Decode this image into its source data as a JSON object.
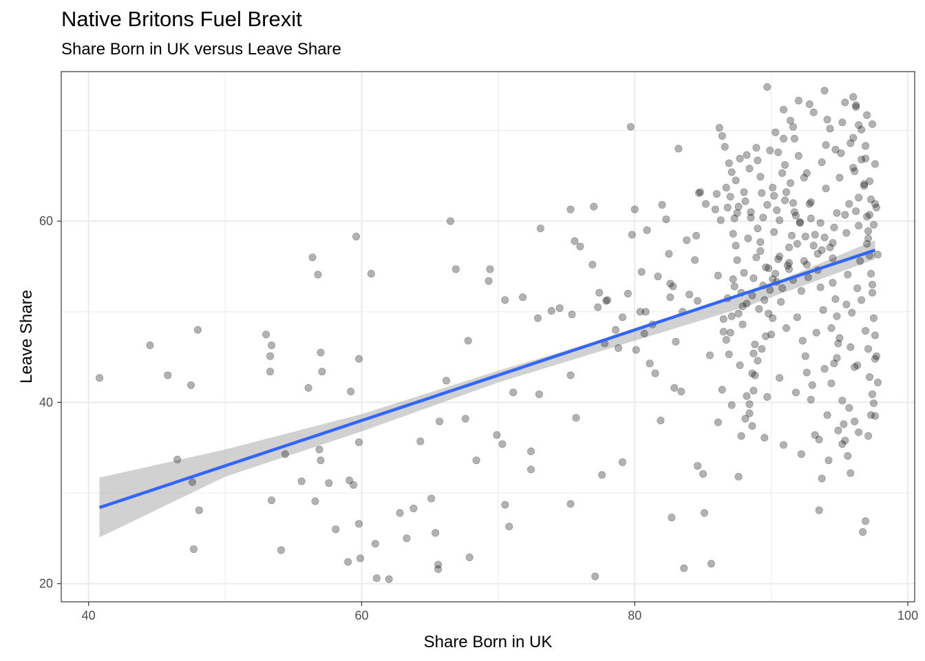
{
  "title": "Native Britons Fuel Brexit",
  "subtitle": "Share Born in UK versus Leave Share",
  "colors": {
    "point": "#000000",
    "trend_line": "#3366FF",
    "confidence_band": "#999999",
    "grid": "#EBEBEB",
    "panel_border": "#333333"
  },
  "chart_data": {
    "type": "scatter",
    "title": "Native Britons Fuel Brexit",
    "subtitle": "Share Born in UK versus Leave Share",
    "xlabel": "Share Born in UK",
    "ylabel": "Leave Share",
    "xlim": [
      38,
      100.5
    ],
    "ylim": [
      18,
      76.5
    ],
    "x_ticks": [
      40,
      60,
      80,
      100
    ],
    "y_ticks": [
      20,
      40,
      60
    ],
    "x_tick_labels": [
      "40",
      "60",
      "80",
      "100"
    ],
    "y_tick_labels": [
      "20",
      "40",
      "60"
    ],
    "grid": true,
    "legend": "none",
    "point_alpha": 0.3,
    "trend": {
      "method": "linear",
      "x_start": 40.8,
      "y_start": 28.4,
      "x_end": 97.6,
      "y_end": 56.8,
      "band": [
        [
          40.8,
          25.1,
          31.7
        ],
        [
          50,
          31.8,
          34.8
        ],
        [
          60,
          36.8,
          38.7
        ],
        [
          70,
          42.2,
          43.5
        ],
        [
          80,
          46.8,
          48.0
        ],
        [
          88,
          50.5,
          51.8
        ],
        [
          97.6,
          55.8,
          57.9
        ]
      ]
    },
    "points": [
      [
        40.8,
        42.7
      ],
      [
        44.5,
        46.3
      ],
      [
        45.8,
        43.0
      ],
      [
        46.5,
        33.7
      ],
      [
        47.5,
        41.9
      ],
      [
        47.6,
        31.2
      ],
      [
        47.7,
        23.8
      ],
      [
        48,
        48
      ],
      [
        48.1,
        28.1
      ],
      [
        53,
        47.5
      ],
      [
        53.3,
        45.1
      ],
      [
        53.3,
        43.4
      ],
      [
        53.4,
        46.3
      ],
      [
        53.4,
        29.2
      ],
      [
        54.1,
        23.7
      ],
      [
        54.4,
        34.3
      ],
      [
        55.6,
        31.3
      ],
      [
        56.1,
        41.6
      ],
      [
        56.4,
        56
      ],
      [
        56.6,
        29.1
      ],
      [
        56.8,
        54.1
      ],
      [
        56.9,
        34.8
      ],
      [
        57,
        33.6
      ],
      [
        57,
        45.5
      ],
      [
        57.1,
        43.4
      ],
      [
        57.6,
        31.1
      ],
      [
        58.1,
        26
      ],
      [
        59,
        22.4
      ],
      [
        59.1,
        31.4
      ],
      [
        59.2,
        41.2
      ],
      [
        59.4,
        30.9
      ],
      [
        59.6,
        58.3
      ],
      [
        59.8,
        35.6
      ],
      [
        59.8,
        44.8
      ],
      [
        59.8,
        26.6
      ],
      [
        59.9,
        22.8
      ],
      [
        60.7,
        54.2
      ],
      [
        61,
        24.4
      ],
      [
        61.1,
        20.6
      ],
      [
        62,
        20.5
      ],
      [
        62.8,
        27.8
      ],
      [
        63.3,
        25
      ],
      [
        63.8,
        28.3
      ],
      [
        64.3,
        35.7
      ],
      [
        65.1,
        29.4
      ],
      [
        65.4,
        25.6
      ],
      [
        65.6,
        21.6
      ],
      [
        65.6,
        22.1
      ],
      [
        65.7,
        37.9
      ],
      [
        66.2,
        42.4
      ],
      [
        66.5,
        60
      ],
      [
        66.9,
        54.7
      ],
      [
        67.6,
        38.2
      ],
      [
        67.8,
        46.8
      ],
      [
        67.9,
        22.9
      ],
      [
        68.4,
        33.6
      ],
      [
        69.3,
        53.4
      ],
      [
        69.4,
        54.7
      ],
      [
        69.9,
        36.4
      ],
      [
        70.3,
        35.4
      ],
      [
        70.5,
        51.3
      ],
      [
        70.5,
        28.7
      ],
      [
        70.8,
        26.3
      ],
      [
        71.1,
        41.1
      ],
      [
        71.8,
        51.6
      ],
      [
        72.4,
        34.6
      ],
      [
        72.4,
        32.6
      ],
      [
        72.9,
        49.3
      ],
      [
        73.0,
        40.9
      ],
      [
        73.1,
        59.2
      ],
      [
        73.9,
        50.1
      ],
      [
        74.5,
        50.4
      ],
      [
        75.3,
        61.3
      ],
      [
        75.3,
        43
      ],
      [
        75.3,
        28.8
      ],
      [
        75.4,
        49.7
      ],
      [
        75.6,
        57.8
      ],
      [
        75.7,
        38.3
      ],
      [
        76,
        57.2
      ],
      [
        76.9,
        55.2
      ],
      [
        77,
        61.6
      ],
      [
        77.1,
        20.8
      ],
      [
        77.3,
        50.5
      ],
      [
        77.4,
        52.1
      ],
      [
        77.6,
        32
      ],
      [
        77.8,
        46.5
      ],
      [
        77.9,
        51.2
      ],
      [
        78.0,
        51.3
      ],
      [
        78.6,
        48
      ],
      [
        78.8,
        46
      ],
      [
        79.1,
        33.4
      ],
      [
        79.1,
        49.4
      ],
      [
        79.5,
        52
      ],
      [
        79.7,
        70.4
      ],
      [
        79.8,
        58.5
      ],
      [
        80,
        61.3
      ],
      [
        80.1,
        45.8
      ],
      [
        80.4,
        50
      ],
      [
        80.5,
        54.4
      ],
      [
        80.7,
        47.6
      ],
      [
        80.8,
        50
      ],
      [
        80.9,
        59
      ],
      [
        81.1,
        44.3
      ],
      [
        81.5,
        43.2
      ],
      [
        81.3,
        48.6
      ],
      [
        81.7,
        53.9
      ],
      [
        81.9,
        38
      ],
      [
        82,
        61.8
      ],
      [
        82.3,
        60.2
      ],
      [
        82.5,
        56.4
      ],
      [
        82.6,
        51.6
      ],
      [
        82.6,
        53.1
      ],
      [
        82.7,
        27.3
      ],
      [
        82.8,
        52.8
      ],
      [
        82.9,
        41.6
      ],
      [
        83.0,
        46.7
      ],
      [
        83.2,
        68
      ],
      [
        83.4,
        41.2
      ],
      [
        83.5,
        50
      ],
      [
        83.6,
        21.7
      ],
      [
        83.8,
        57.9
      ],
      [
        84,
        51.9
      ],
      [
        84.4,
        55.7
      ],
      [
        84.5,
        58.4
      ],
      [
        84.6,
        33
      ],
      [
        84.6,
        51.2
      ],
      [
        84.7,
        63.1
      ],
      [
        84.8,
        63.2
      ],
      [
        85,
        32.1
      ],
      [
        85.1,
        27.8
      ],
      [
        85.2,
        61.9
      ],
      [
        85.5,
        45.2
      ],
      [
        85.6,
        22.2
      ],
      [
        85.9,
        61.3
      ],
      [
        86.0,
        63
      ],
      [
        86.1,
        54
      ],
      [
        86.1,
        37.8
      ],
      [
        86.2,
        70.3
      ],
      [
        86.3,
        60.1
      ],
      [
        86.5,
        47.8
      ],
      [
        86.7,
        46.9
      ],
      [
        86.8,
        61.5
      ],
      [
        87.2,
        53.6
      ],
      [
        87.1,
        65.4
      ],
      [
        87.3,
        60.3
      ],
      [
        87.6,
        31.8
      ],
      [
        88.2,
        40.7
      ],
      [
        88.4,
        38.8
      ],
      [
        88.7,
        45.4
      ],
      [
        88.8,
        43
      ],
      [
        89.2,
        57.7
      ],
      [
        89.2,
        56.7
      ],
      [
        89.5,
        51.3
      ],
      [
        89.8,
        49.8
      ],
      [
        90.1,
        49.3
      ],
      [
        89.7,
        74.8
      ],
      [
        90.1,
        53.6
      ],
      [
        90.5,
        67.6
      ],
      [
        90.8,
        65.3
      ],
      [
        91.0,
        66.2
      ],
      [
        91.1,
        63.2
      ],
      [
        91.3,
        55.4
      ],
      [
        91.6,
        62
      ],
      [
        91.8,
        60.6
      ],
      [
        91.9,
        57.5
      ],
      [
        92.1,
        59.8
      ],
      [
        92.2,
        52.3
      ],
      [
        92.5,
        45.1
      ],
      [
        92.6,
        43.3
      ],
      [
        93.0,
        41.9
      ],
      [
        93.2,
        36.4
      ],
      [
        93.5,
        28.1
      ],
      [
        93.7,
        31.6
      ],
      [
        93.9,
        58.2
      ],
      [
        94.1,
        71.2
      ],
      [
        94.3,
        57.1
      ],
      [
        94.5,
        53.2
      ],
      [
        94.8,
        49.5
      ],
      [
        95.0,
        47.1
      ],
      [
        95.2,
        40.2
      ],
      [
        95.4,
        35.8
      ],
      [
        95.6,
        34.1
      ],
      [
        95.8,
        32.2
      ],
      [
        96.0,
        73.7
      ],
      [
        96.2,
        72.6
      ],
      [
        96.4,
        70.6
      ],
      [
        96.6,
        66.8
      ],
      [
        96.8,
        63.9
      ],
      [
        97.0,
        60.5
      ],
      [
        97.1,
        58.1
      ],
      [
        97.2,
        56.2
      ],
      [
        97.3,
        54.2
      ],
      [
        97.4,
        52.1
      ],
      [
        97.5,
        49.3
      ],
      [
        97.6,
        47.4
      ],
      [
        97.7,
        45.1
      ],
      [
        97.2,
        42.8
      ],
      [
        97.4,
        40.9
      ],
      [
        97.6,
        38.5
      ],
      [
        97.1,
        36.3
      ],
      [
        96.9,
        26.9
      ],
      [
        96.7,
        25.7
      ],
      [
        96.3,
        44.1
      ],
      [
        96.1,
        43.9
      ],
      [
        95.7,
        39.4
      ],
      [
        95.3,
        37.6
      ],
      [
        94.9,
        46.5
      ],
      [
        94.6,
        44.3
      ],
      [
        94.4,
        42.1
      ],
      [
        94.2,
        33.6
      ],
      [
        93.8,
        50.2
      ],
      [
        93.4,
        54.6
      ],
      [
        93.1,
        57.3
      ],
      [
        92.8,
        61.9
      ],
      [
        92.4,
        64.8
      ],
      [
        92.0,
        67.2
      ],
      [
        91.7,
        69.1
      ],
      [
        91.4,
        71.1
      ],
      [
        90.9,
        72.3
      ],
      [
        90.6,
        56.1
      ],
      [
        90.3,
        54.2
      ],
      [
        89.9,
        52.4
      ],
      [
        89.6,
        47.3
      ],
      [
        89.3,
        45.9
      ],
      [
        89.0,
        44.6
      ],
      [
        88.6,
        43.2
      ],
      [
        88.4,
        39.8
      ],
      [
        88.1,
        38.2
      ],
      [
        87.8,
        36.3
      ],
      [
        87.5,
        55.7
      ],
      [
        87.2,
        58.6
      ],
      [
        87.0,
        62.7
      ],
      [
        86.9,
        66.4
      ],
      [
        86.6,
        68.2
      ],
      [
        86.4,
        69.4
      ],
      [
        88.0,
        63.2
      ],
      [
        88.5,
        61.0
      ],
      [
        89.0,
        59.2
      ],
      [
        90.2,
        58.8
      ],
      [
        91.2,
        55.1
      ],
      [
        92.7,
        53.8
      ],
      [
        93.6,
        52.7
      ],
      [
        94.7,
        51.4
      ],
      [
        95.5,
        50.8
      ],
      [
        96.5,
        55.6
      ],
      [
        97.0,
        57.5
      ],
      [
        97.5,
        59.6
      ],
      [
        97.7,
        61.5
      ],
      [
        97.3,
        62.4
      ],
      [
        96.8,
        64.1
      ],
      [
        96.0,
        65.9
      ],
      [
        95.1,
        67.5
      ],
      [
        94.0,
        68.4
      ],
      [
        92.9,
        60.3
      ],
      [
        91.5,
        58.4
      ],
      [
        90.4,
        61.2
      ],
      [
        89.4,
        60.4
      ],
      [
        88.3,
        58.1
      ],
      [
        87.4,
        57.3
      ],
      [
        86.8,
        51.5
      ],
      [
        86.5,
        49.2
      ],
      [
        87.9,
        48.6
      ],
      [
        89.1,
        50.3
      ],
      [
        90.7,
        51.1
      ],
      [
        91.9,
        49.4
      ],
      [
        93.3,
        47.7
      ],
      [
        94.4,
        48.2
      ],
      [
        95.9,
        49.9
      ],
      [
        96.6,
        51.3
      ],
      [
        97.4,
        53.0
      ],
      [
        97.8,
        56.3
      ],
      [
        97.1,
        58.9
      ],
      [
        96.2,
        61.1
      ],
      [
        95.4,
        60.7
      ],
      [
        94.6,
        59.3
      ],
      [
        93.7,
        56.8
      ],
      [
        92.6,
        55.2
      ],
      [
        91.6,
        53.5
      ],
      [
        90.8,
        52.6
      ],
      [
        89.8,
        54.8
      ],
      [
        88.9,
        56.0
      ],
      [
        88.0,
        54.3
      ],
      [
        87.3,
        52.8
      ],
      [
        86.9,
        45.3
      ],
      [
        87.7,
        44.1
      ],
      [
        88.7,
        41.3
      ],
      [
        89.7,
        40.6
      ],
      [
        90.6,
        42.7
      ],
      [
        91.8,
        41.1
      ],
      [
        92.9,
        40.3
      ],
      [
        94.1,
        38.6
      ],
      [
        95.2,
        35.4
      ],
      [
        96.4,
        36.7
      ],
      [
        97.5,
        39.9
      ],
      [
        97.6,
        44.8
      ],
      [
        96.9,
        47.9
      ],
      [
        95.8,
        46.1
      ],
      [
        94.8,
        44.9
      ],
      [
        93.9,
        43.7
      ],
      [
        92.3,
        46.8
      ],
      [
        91.1,
        48.2
      ],
      [
        90.0,
        47.5
      ],
      [
        88.8,
        46.4
      ],
      [
        88.2,
        50.9
      ],
      [
        87.6,
        49.8
      ],
      [
        87.0,
        47.7
      ],
      [
        86.4,
        41.4
      ],
      [
        87.1,
        39.7
      ],
      [
        88.6,
        37.4
      ],
      [
        89.5,
        36.1
      ],
      [
        90.9,
        35.3
      ],
      [
        92.2,
        34.3
      ],
      [
        93.5,
        35.9
      ],
      [
        94.9,
        36.9
      ],
      [
        96.1,
        37.9
      ],
      [
        97.3,
        38.6
      ],
      [
        97.8,
        42.2
      ],
      [
        97.1,
        45.9
      ],
      [
        96.3,
        52.6
      ],
      [
        95.6,
        54.1
      ],
      [
        94.5,
        55.9
      ],
      [
        93.2,
        58.5
      ],
      [
        92.1,
        59.9
      ],
      [
        91.0,
        62.3
      ],
      [
        90.1,
        63.7
      ],
      [
        89.2,
        64.9
      ],
      [
        88.4,
        65.8
      ],
      [
        87.7,
        66.9
      ],
      [
        88.9,
        68.1
      ],
      [
        90.3,
        69.8
      ],
      [
        91.6,
        70.4
      ],
      [
        92.8,
        72.9
      ],
      [
        93.9,
        74.4
      ],
      [
        95.2,
        70.9
      ],
      [
        96.0,
        69.2
      ],
      [
        96.9,
        68.3
      ],
      [
        97.6,
        66.3
      ],
      [
        97.2,
        64.4
      ],
      [
        96.4,
        62.6
      ],
      [
        95.7,
        61.9
      ],
      [
        94.8,
        60.9
      ],
      [
        93.6,
        59.8
      ],
      [
        92.5,
        58.3
      ],
      [
        91.3,
        57.1
      ],
      [
        90.5,
        55.8
      ],
      [
        89.6,
        54.9
      ],
      [
        88.7,
        53.7
      ],
      [
        87.8,
        52.1
      ],
      [
        87.5,
        60.9
      ],
      [
        88.1,
        62.2
      ],
      [
        89.3,
        63.1
      ],
      [
        90.2,
        62.8
      ],
      [
        91.4,
        64.2
      ],
      [
        92.6,
        65.3
      ],
      [
        93.7,
        66.5
      ],
      [
        94.7,
        67.9
      ],
      [
        95.8,
        68.6
      ],
      [
        96.6,
        70.1
      ],
      [
        97.4,
        70.7
      ],
      [
        97.0,
        71.7
      ],
      [
        96.2,
        72.8
      ],
      [
        95.4,
        73.1
      ],
      [
        94.3,
        70.2
      ],
      [
        93.1,
        72.0
      ],
      [
        92.0,
        73.3
      ],
      [
        90.9,
        69.1
      ],
      [
        89.9,
        67.8
      ],
      [
        89.0,
        66.7
      ],
      [
        88.2,
        67.3
      ],
      [
        87.4,
        64.5
      ],
      [
        86.7,
        63.7
      ],
      [
        87.6,
        61.6
      ],
      [
        88.5,
        60.4
      ],
      [
        89.7,
        61.8
      ],
      [
        90.6,
        60.1
      ],
      [
        91.7,
        61.0
      ],
      [
        92.9,
        62.1
      ],
      [
        94.0,
        63.6
      ],
      [
        95.0,
        64.8
      ],
      [
        96.1,
        65.5
      ],
      [
        96.9,
        66.9
      ],
      [
        97.6,
        61.9
      ],
      [
        97.2,
        60.7
      ],
      [
        96.4,
        59.5
      ],
      [
        95.5,
        58.7
      ],
      [
        94.5,
        57.6
      ],
      [
        93.4,
        56.4
      ],
      [
        92.4,
        55.6
      ],
      [
        91.3,
        54.7
      ],
      [
        90.4,
        53.3
      ],
      [
        89.4,
        52.9
      ],
      [
        88.6,
        51.8
      ],
      [
        87.9,
        50.6
      ],
      [
        87.1,
        49.5
      ]
    ]
  }
}
